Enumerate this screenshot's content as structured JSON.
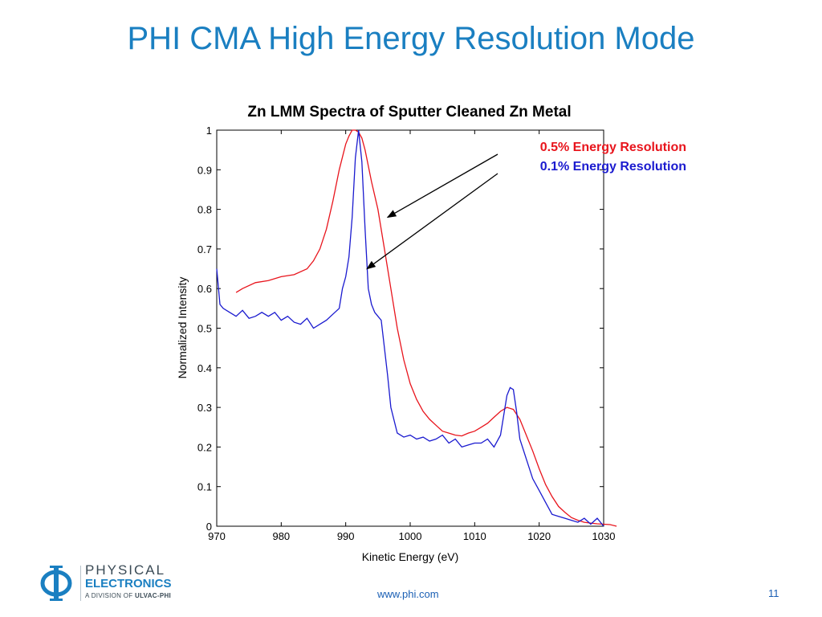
{
  "slide": {
    "title": "PHI CMA High Energy Resolution Mode",
    "footer_url": "www.phi.com",
    "page_number": "11"
  },
  "logo": {
    "line1": "PHYSICAL",
    "line2": "ELECTRONICS",
    "line3_prefix": "A DIVISION OF",
    "line3_brand": "ULVAC-PHI",
    "symbol": "phi-symbol",
    "color": "#1a7fc1"
  },
  "chart_data": {
    "type": "line",
    "title": "Zn LMM Spectra of Sputter Cleaned Zn Metal",
    "xlabel": "Kinetic Energy (eV)",
    "ylabel": "Normalized Intensity",
    "xlim": [
      970,
      1030
    ],
    "ylim": [
      0,
      1
    ],
    "xticks": [
      "970",
      "980",
      "990",
      "1000",
      "1010",
      "1020",
      "1030"
    ],
    "yticks": [
      "0",
      "0.1",
      "0.2",
      "0.3",
      "0.4",
      "0.5",
      "0.6",
      "0.7",
      "0.8",
      "0.9",
      "1"
    ],
    "grid": false,
    "series": [
      {
        "name": "0.5% Energy Resolution",
        "color": "#e8141c",
        "x": [
          973,
          974,
          976,
          978,
          980,
          982,
          984,
          985,
          986,
          987,
          988,
          989,
          990,
          990.5,
          991,
          991.5,
          992,
          992.5,
          993,
          993.5,
          994,
          995,
          996,
          997,
          998,
          999,
          1000,
          1001,
          1002,
          1003,
          1004,
          1005,
          1006,
          1007,
          1008,
          1009,
          1010,
          1011,
          1012,
          1013,
          1014,
          1015,
          1016,
          1017,
          1018,
          1019,
          1020,
          1021,
          1022,
          1023,
          1024,
          1025,
          1026,
          1027,
          1028,
          1029,
          1030,
          1031,
          1032
        ],
        "y": [
          0.59,
          0.6,
          0.615,
          0.62,
          0.63,
          0.635,
          0.65,
          0.67,
          0.7,
          0.75,
          0.82,
          0.9,
          0.965,
          0.985,
          1.0,
          1.0,
          0.995,
          0.98,
          0.95,
          0.91,
          0.87,
          0.8,
          0.7,
          0.6,
          0.5,
          0.42,
          0.36,
          0.32,
          0.29,
          0.27,
          0.255,
          0.24,
          0.235,
          0.23,
          0.228,
          0.235,
          0.24,
          0.25,
          0.26,
          0.275,
          0.29,
          0.3,
          0.295,
          0.27,
          0.23,
          0.19,
          0.145,
          0.105,
          0.075,
          0.05,
          0.035,
          0.022,
          0.015,
          0.01,
          0.008,
          0.006,
          0.005,
          0.004,
          0.0
        ],
        "label_color": "#e8141c"
      },
      {
        "name": "0.1% Energy Resolution",
        "color": "#1a1acf",
        "x": [
          970,
          970.5,
          971,
          972,
          973,
          974,
          975,
          976,
          977,
          978,
          979,
          980,
          981,
          982,
          983,
          984,
          985,
          986,
          987,
          988,
          989,
          989.5,
          990,
          990.5,
          991,
          991.5,
          992,
          992.5,
          993,
          993.5,
          994,
          994.5,
          995,
          995.5,
          996,
          996.5,
          997,
          998,
          999,
          1000,
          1001,
          1002,
          1003,
          1004,
          1005,
          1006,
          1007,
          1008,
          1009,
          1010,
          1011,
          1012,
          1013,
          1014,
          1014.5,
          1015,
          1015.5,
          1016,
          1016.5,
          1017,
          1018,
          1019,
          1020,
          1021,
          1022,
          1023,
          1024,
          1025,
          1026,
          1027,
          1028,
          1029,
          1030
        ],
        "y": [
          0.65,
          0.56,
          0.55,
          0.54,
          0.53,
          0.545,
          0.525,
          0.53,
          0.54,
          0.53,
          0.54,
          0.52,
          0.53,
          0.515,
          0.51,
          0.525,
          0.5,
          0.51,
          0.52,
          0.535,
          0.55,
          0.6,
          0.63,
          0.68,
          0.78,
          0.93,
          1.0,
          0.92,
          0.75,
          0.6,
          0.56,
          0.54,
          0.53,
          0.52,
          0.45,
          0.38,
          0.3,
          0.235,
          0.225,
          0.23,
          0.22,
          0.225,
          0.215,
          0.22,
          0.23,
          0.21,
          0.22,
          0.2,
          0.205,
          0.21,
          0.21,
          0.22,
          0.2,
          0.23,
          0.28,
          0.33,
          0.35,
          0.345,
          0.29,
          0.22,
          0.17,
          0.12,
          0.09,
          0.06,
          0.03,
          0.025,
          0.02,
          0.015,
          0.01,
          0.02,
          0.005,
          0.02,
          0.0
        ],
        "label_color": "#1a1acf"
      }
    ],
    "annotations": [
      {
        "text": "0.5% Energy Resolution",
        "arrow_to_x": 996.5,
        "arrow_to_y": 0.78
      },
      {
        "text": "0.1% Energy Resolution",
        "arrow_to_x": 993.3,
        "arrow_to_y": 0.65
      }
    ]
  }
}
